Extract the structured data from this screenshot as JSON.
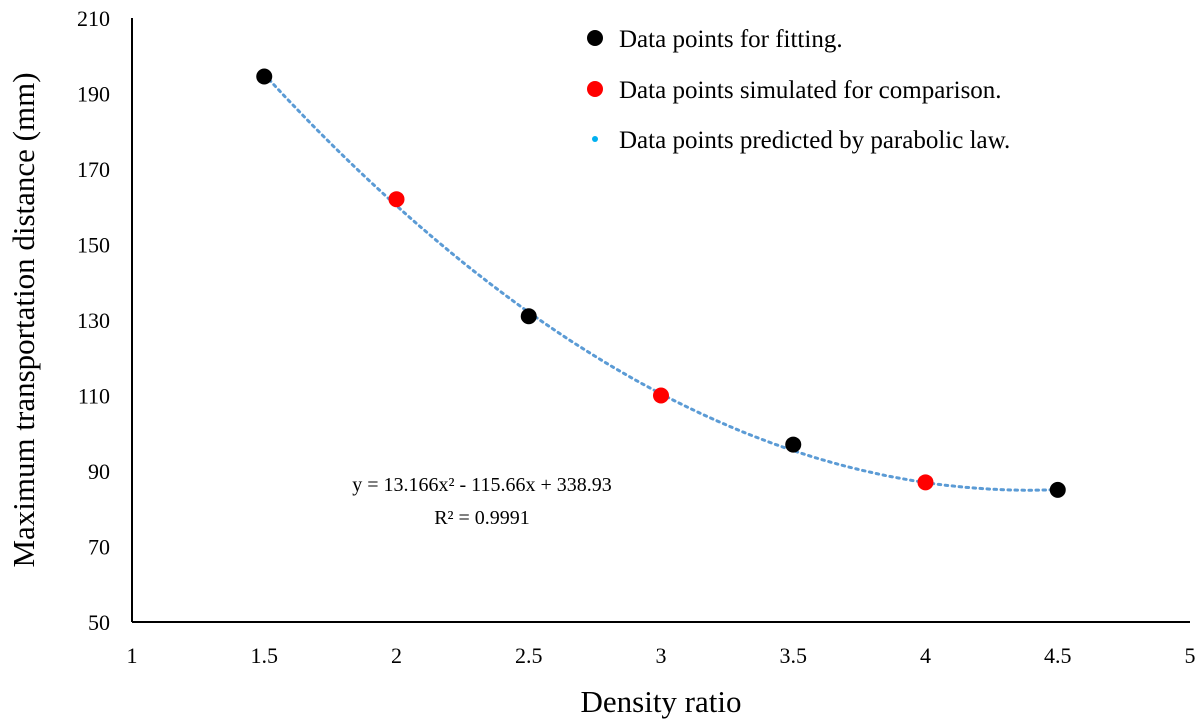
{
  "chart_data": {
    "type": "scatter",
    "xlabel": "Density ratio",
    "ylabel": "Maximum transportation distance (mm)",
    "xlim": [
      1,
      5
    ],
    "ylim": [
      50,
      210
    ],
    "x_ticks": [
      "1",
      "1.5",
      "2",
      "2.5",
      "3",
      "3.5",
      "4",
      "4.5",
      "5"
    ],
    "y_ticks": [
      "50",
      "70",
      "90",
      "110",
      "130",
      "150",
      "170",
      "190",
      "210"
    ],
    "grid": false,
    "legend_position": "top-right",
    "series": [
      {
        "name": "Data points for fitting.",
        "color": "#000000",
        "marker": "circle",
        "points": [
          [
            1.5,
            194.5
          ],
          [
            2.5,
            131
          ],
          [
            3.5,
            97
          ],
          [
            4.5,
            85
          ]
        ]
      },
      {
        "name": "Data points simulated for comparison.",
        "color": "#ff0000",
        "marker": "circle",
        "points": [
          [
            2,
            162
          ],
          [
            3,
            110
          ],
          [
            4,
            87
          ]
        ]
      },
      {
        "name": "Data points predicted by parabolic law.",
        "color": "#00b0f0",
        "marker": "dotted-curve",
        "curve_color": "#5b9bd5",
        "coefficients": [
          13.166,
          -115.66,
          338.93
        ],
        "x_range": [
          1.5,
          4.5
        ]
      }
    ],
    "annotations": {
      "equation": "y = 13.166x² - 115.66x + 338.93",
      "r_squared": "R² = 0.9991"
    }
  }
}
